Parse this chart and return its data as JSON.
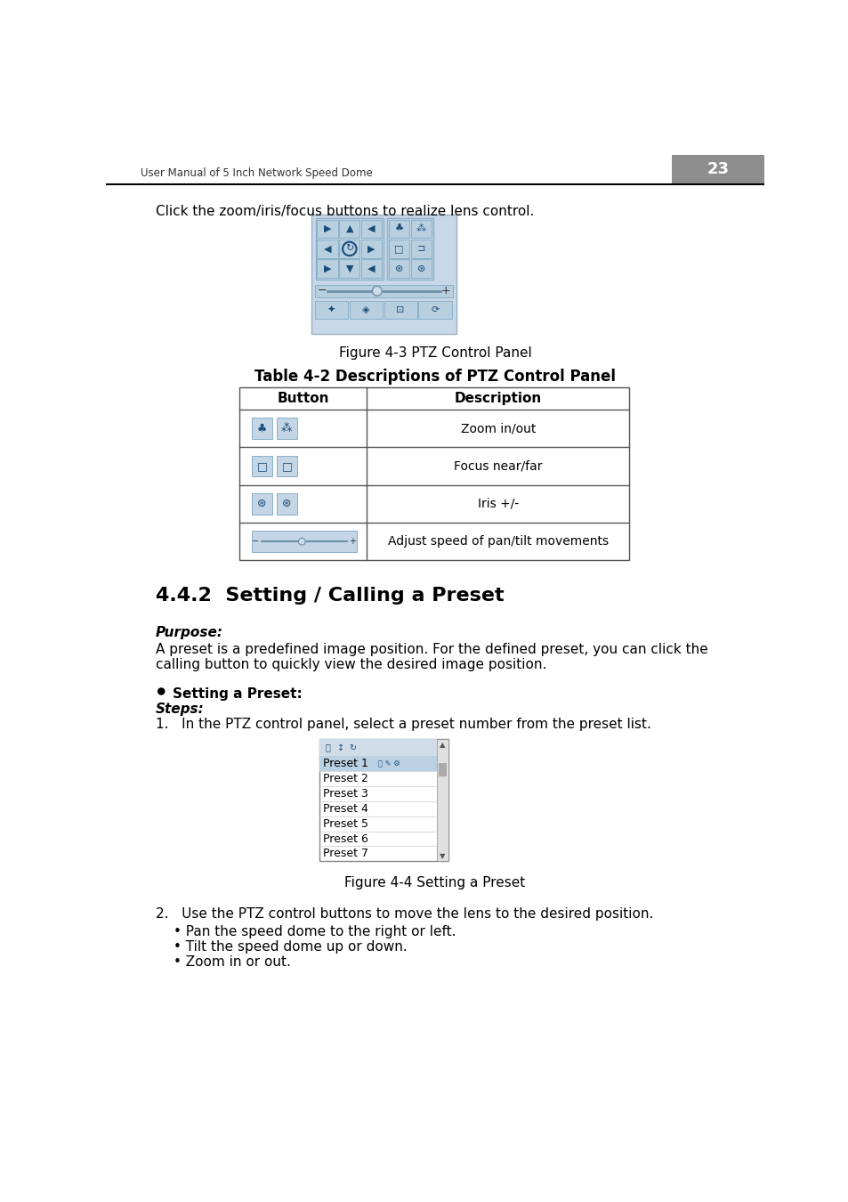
{
  "page_number": "23",
  "header_text": "User Manual of 5 Inch Network Speed Dome",
  "bg_color": "#ffffff",
  "intro_text": "Click the zoom/iris/focus buttons to realize lens control.",
  "fig43_caption": "Figure 4-3 PTZ Control Panel",
  "table_title": "Table 4-2 Descriptions of PTZ Control Panel",
  "table_col1_header": "Button",
  "table_col2_header": "Description",
  "table_rows": [
    {
      "desc": "Zoom in/out"
    },
    {
      "desc": "Focus near/far"
    },
    {
      "desc": "Iris +/-"
    },
    {
      "desc": "Adjust speed of pan/tilt movements"
    }
  ],
  "section_title": "4.4.2  Setting / Calling a Preset",
  "purpose_label": "Purpose:",
  "purpose_line1": "A preset is a predefined image position. For the defined preset, you can click the",
  "purpose_line2": "calling button to quickly view the desired image position.",
  "bullet_title": "Setting a Preset:",
  "steps_label": "Steps:",
  "step1_text": "1.   In the PTZ control panel, select a preset number from the preset list.",
  "fig44_caption": "Figure 4-4 Setting a Preset",
  "preset_items": [
    "Preset 1",
    "Preset 2",
    "Preset 3",
    "Preset 4",
    "Preset 5",
    "Preset 6",
    "Preset 7"
  ],
  "step2_text": "2.   Use the PTZ control buttons to move the lens to the desired position.",
  "step2_bullets": [
    "• Pan the speed dome to the right or left.",
    "• Tilt the speed dome up or down.",
    "• Zoom in or out."
  ],
  "ptz_panel_bg": "#c8d8e8",
  "ptz_panel_border": "#9ab0c4",
  "btn_bg": "#b8cfe0",
  "btn_border": "#8aafc8",
  "btn_dark_bg": "#2e6da4",
  "icon_cell_bg": "#c4d5e5",
  "table_border": "#555555",
  "preset_selected_bg": "#bad0e3",
  "preset_row_border": "#c8d8e8",
  "scrollbar_bg": "#e0e0e0"
}
